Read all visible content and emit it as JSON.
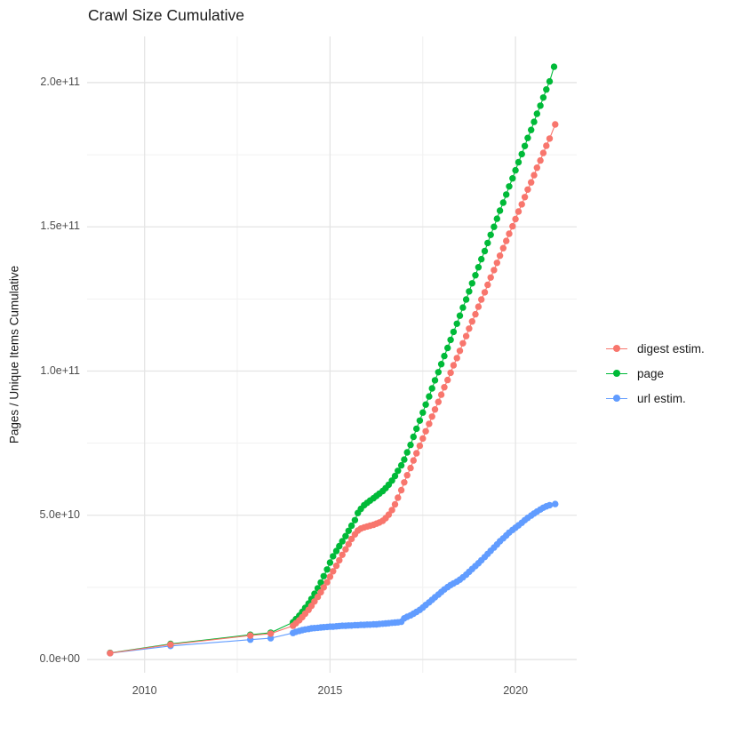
{
  "title": "Crawl Size Cumulative",
  "y_axis": {
    "title": "Pages / Unique Items Cumulative",
    "ticks": [
      "0.0e+00",
      "5.0e+10",
      "1.0e+11",
      "1.5e+11",
      "2.0e+11"
    ]
  },
  "x_axis": {
    "ticks": [
      "2010",
      "2015",
      "2020"
    ]
  },
  "legend": {
    "position": "right",
    "items": [
      {
        "label": "digest estim.",
        "color": "#F8766D"
      },
      {
        "label": "page",
        "color": "#00BA38"
      },
      {
        "label": "url estim.",
        "color": "#619CFF"
      }
    ]
  },
  "colors": {
    "background": "#FFFFFF",
    "grid_major": "#E4E4E4",
    "grid_minor": "#F1F1F1",
    "tick_text": "#4D4D4D",
    "title_text": "#1A1A1A"
  },
  "chart_data": {
    "type": "line",
    "title": "Crawl Size Cumulative",
    "xlabel": "",
    "ylabel": "Pages / Unique Items Cumulative",
    "value_unit": "billions (1e9) of pages / unique items",
    "x_domain": [
      2008.45,
      2021.65
    ],
    "y_domain_e9": [
      -4.6,
      216
    ],
    "grid": "on",
    "x_ticks": [
      {
        "value": 2010,
        "label": "2010"
      },
      {
        "value": 2015,
        "label": "2015"
      },
      {
        "value": 2020,
        "label": "2020"
      }
    ],
    "y_ticks": [
      {
        "value_e9": 0,
        "label": "0.0e+00"
      },
      {
        "value_e9": 50,
        "label": "5.0e+10"
      },
      {
        "value_e9": 100,
        "label": "1.0e+11"
      },
      {
        "value_e9": 150,
        "label": "1.5e+11"
      },
      {
        "value_e9": 200,
        "label": "2.0e+11"
      }
    ],
    "x_minor_gridlines": [
      2012.5,
      2017.5
    ],
    "y_minor_gridlines_e9": [
      25,
      75,
      125,
      175
    ],
    "render_order": [
      1,
      2,
      0
    ],
    "marker_radius_px": 3.7,
    "series": [
      {
        "name": "digest estim.",
        "color": "#F8766D",
        "points": [
          [
            2009.07,
            2.2
          ],
          [
            2010.7,
            5.2
          ],
          [
            2012.85,
            8.3
          ],
          [
            2013.4,
            9.0
          ],
          [
            2014.0,
            11.7
          ],
          [
            2014.08,
            12.6
          ],
          [
            2014.17,
            13.6
          ],
          [
            2014.25,
            14.7
          ],
          [
            2014.33,
            15.9
          ],
          [
            2014.42,
            17.2
          ],
          [
            2014.5,
            18.6
          ],
          [
            2014.58,
            20.1
          ],
          [
            2014.67,
            21.7
          ],
          [
            2014.75,
            23.3
          ],
          [
            2014.83,
            25.0
          ],
          [
            2014.92,
            26.8
          ],
          [
            2015.0,
            28.7
          ],
          [
            2015.08,
            30.6
          ],
          [
            2015.17,
            32.5
          ],
          [
            2015.25,
            34.4
          ],
          [
            2015.33,
            36.3
          ],
          [
            2015.42,
            38.2
          ],
          [
            2015.5,
            40.0
          ],
          [
            2015.58,
            41.8
          ],
          [
            2015.67,
            43.4
          ],
          [
            2015.75,
            44.7
          ],
          [
            2015.83,
            45.4
          ],
          [
            2015.92,
            45.8
          ],
          [
            2016.0,
            46.1
          ],
          [
            2016.08,
            46.4
          ],
          [
            2016.17,
            46.7
          ],
          [
            2016.25,
            47.1
          ],
          [
            2016.33,
            47.5
          ],
          [
            2016.42,
            48.1
          ],
          [
            2016.5,
            49.0
          ],
          [
            2016.58,
            50.2
          ],
          [
            2016.67,
            51.8
          ],
          [
            2016.75,
            53.8
          ],
          [
            2016.83,
            56.1
          ],
          [
            2016.92,
            58.7
          ],
          [
            2017.0,
            61.4
          ],
          [
            2017.08,
            63.9
          ],
          [
            2017.17,
            66.4
          ],
          [
            2017.25,
            69.0
          ],
          [
            2017.33,
            71.5
          ],
          [
            2017.42,
            74.1
          ],
          [
            2017.5,
            76.6
          ],
          [
            2017.58,
            79.1
          ],
          [
            2017.67,
            81.7
          ],
          [
            2017.75,
            84.2
          ],
          [
            2017.83,
            86.7
          ],
          [
            2017.92,
            89.3
          ],
          [
            2018.0,
            91.8
          ],
          [
            2018.08,
            94.4
          ],
          [
            2018.17,
            96.9
          ],
          [
            2018.25,
            99.4
          ],
          [
            2018.33,
            102.0
          ],
          [
            2018.42,
            104.5
          ],
          [
            2018.5,
            107.0
          ],
          [
            2018.58,
            109.6
          ],
          [
            2018.67,
            112.1
          ],
          [
            2018.75,
            114.7
          ],
          [
            2018.83,
            117.2
          ],
          [
            2018.92,
            119.7
          ],
          [
            2019.0,
            122.3
          ],
          [
            2019.08,
            124.8
          ],
          [
            2019.17,
            127.3
          ],
          [
            2019.25,
            129.9
          ],
          [
            2019.33,
            132.4
          ],
          [
            2019.42,
            135.0
          ],
          [
            2019.5,
            137.5
          ],
          [
            2019.58,
            140.0
          ],
          [
            2019.67,
            142.6
          ],
          [
            2019.75,
            145.1
          ],
          [
            2019.83,
            147.6
          ],
          [
            2019.92,
            150.2
          ],
          [
            2020.0,
            152.7
          ],
          [
            2020.08,
            155.3
          ],
          [
            2020.17,
            157.8
          ],
          [
            2020.25,
            160.3
          ],
          [
            2020.33,
            162.9
          ],
          [
            2020.42,
            165.4
          ],
          [
            2020.5,
            167.9
          ],
          [
            2020.58,
            170.5
          ],
          [
            2020.67,
            173.0
          ],
          [
            2020.75,
            175.6
          ],
          [
            2020.83,
            178.1
          ],
          [
            2020.92,
            180.6
          ],
          [
            2021.07,
            185.5
          ]
        ]
      },
      {
        "name": "page",
        "color": "#00BA38",
        "points": [
          [
            2009.07,
            2.3
          ],
          [
            2010.7,
            5.4
          ],
          [
            2012.85,
            8.6
          ],
          [
            2013.4,
            9.3
          ],
          [
            2014.0,
            12.9
          ],
          [
            2014.08,
            14.0
          ],
          [
            2014.17,
            15.2
          ],
          [
            2014.25,
            16.5
          ],
          [
            2014.33,
            17.9
          ],
          [
            2014.42,
            19.4
          ],
          [
            2014.5,
            21.0
          ],
          [
            2014.58,
            22.8
          ],
          [
            2014.67,
            24.7
          ],
          [
            2014.75,
            26.7
          ],
          [
            2014.83,
            28.9
          ],
          [
            2014.92,
            31.2
          ],
          [
            2015.0,
            33.6
          ],
          [
            2015.08,
            35.8
          ],
          [
            2015.17,
            37.6
          ],
          [
            2015.25,
            39.3
          ],
          [
            2015.33,
            41.0
          ],
          [
            2015.42,
            42.8
          ],
          [
            2015.5,
            44.6
          ],
          [
            2015.58,
            46.4
          ],
          [
            2015.67,
            48.3
          ],
          [
            2015.75,
            50.8
          ],
          [
            2015.83,
            52.2
          ],
          [
            2015.92,
            53.5
          ],
          [
            2016.0,
            54.3
          ],
          [
            2016.08,
            55.1
          ],
          [
            2016.17,
            55.9
          ],
          [
            2016.25,
            56.7
          ],
          [
            2016.33,
            57.5
          ],
          [
            2016.42,
            58.4
          ],
          [
            2016.5,
            59.4
          ],
          [
            2016.58,
            60.6
          ],
          [
            2016.67,
            62.0
          ],
          [
            2016.75,
            63.6
          ],
          [
            2016.83,
            65.4
          ],
          [
            2016.92,
            67.3
          ],
          [
            2017.0,
            69.3
          ],
          [
            2017.08,
            71.8
          ],
          [
            2017.17,
            74.4
          ],
          [
            2017.25,
            77.2
          ],
          [
            2017.33,
            80.0
          ],
          [
            2017.42,
            82.8
          ],
          [
            2017.5,
            85.6
          ],
          [
            2017.58,
            88.4
          ],
          [
            2017.67,
            91.2
          ],
          [
            2017.75,
            94.0
          ],
          [
            2017.83,
            96.8
          ],
          [
            2017.92,
            99.6
          ],
          [
            2018.0,
            102.4
          ],
          [
            2018.08,
            105.2
          ],
          [
            2018.17,
            108.0
          ],
          [
            2018.25,
            110.8
          ],
          [
            2018.33,
            113.6
          ],
          [
            2018.42,
            116.4
          ],
          [
            2018.5,
            119.2
          ],
          [
            2018.58,
            122.0
          ],
          [
            2018.67,
            124.8
          ],
          [
            2018.75,
            127.6
          ],
          [
            2018.83,
            130.4
          ],
          [
            2018.92,
            133.2
          ],
          [
            2019.0,
            136.0
          ],
          [
            2019.08,
            138.8
          ],
          [
            2019.17,
            141.6
          ],
          [
            2019.25,
            144.4
          ],
          [
            2019.33,
            147.2
          ],
          [
            2019.42,
            150.0
          ],
          [
            2019.5,
            152.8
          ],
          [
            2019.58,
            155.6
          ],
          [
            2019.67,
            158.4
          ],
          [
            2019.75,
            161.2
          ],
          [
            2019.83,
            164.0
          ],
          [
            2019.92,
            166.8
          ],
          [
            2020.0,
            169.6
          ],
          [
            2020.08,
            172.4
          ],
          [
            2020.17,
            175.2
          ],
          [
            2020.25,
            178.0
          ],
          [
            2020.33,
            180.8
          ],
          [
            2020.42,
            183.6
          ],
          [
            2020.5,
            186.4
          ],
          [
            2020.58,
            189.2
          ],
          [
            2020.67,
            192.0
          ],
          [
            2020.75,
            194.8
          ],
          [
            2020.83,
            197.6
          ],
          [
            2020.92,
            200.4
          ],
          [
            2021.04,
            205.5
          ]
        ]
      },
      {
        "name": "url estim.",
        "color": "#619CFF",
        "points": [
          [
            2009.07,
            2.2
          ],
          [
            2010.7,
            4.7
          ],
          [
            2012.85,
            6.9
          ],
          [
            2013.4,
            7.4
          ],
          [
            2014.0,
            9.2
          ],
          [
            2014.08,
            9.6
          ],
          [
            2014.17,
            9.9
          ],
          [
            2014.25,
            10.2
          ],
          [
            2014.33,
            10.4
          ],
          [
            2014.42,
            10.6
          ],
          [
            2014.5,
            10.8
          ],
          [
            2014.58,
            10.9
          ],
          [
            2014.67,
            11.0
          ],
          [
            2014.75,
            11.1
          ],
          [
            2014.83,
            11.2
          ],
          [
            2014.92,
            11.3
          ],
          [
            2015.0,
            11.4
          ],
          [
            2015.08,
            11.4
          ],
          [
            2015.17,
            11.5
          ],
          [
            2015.25,
            11.6
          ],
          [
            2015.33,
            11.7
          ],
          [
            2015.42,
            11.7
          ],
          [
            2015.5,
            11.8
          ],
          [
            2015.58,
            11.8
          ],
          [
            2015.67,
            11.9
          ],
          [
            2015.75,
            11.9
          ],
          [
            2015.83,
            12.0
          ],
          [
            2015.92,
            12.0
          ],
          [
            2016.0,
            12.1
          ],
          [
            2016.08,
            12.1
          ],
          [
            2016.17,
            12.2
          ],
          [
            2016.25,
            12.2
          ],
          [
            2016.33,
            12.3
          ],
          [
            2016.42,
            12.4
          ],
          [
            2016.5,
            12.5
          ],
          [
            2016.58,
            12.6
          ],
          [
            2016.67,
            12.7
          ],
          [
            2016.75,
            12.8
          ],
          [
            2016.83,
            12.9
          ],
          [
            2016.92,
            13.1
          ],
          [
            2017.0,
            14.3
          ],
          [
            2017.08,
            14.8
          ],
          [
            2017.17,
            15.3
          ],
          [
            2017.25,
            15.9
          ],
          [
            2017.33,
            16.5
          ],
          [
            2017.42,
            17.2
          ],
          [
            2017.5,
            18.0
          ],
          [
            2017.58,
            18.9
          ],
          [
            2017.67,
            19.8
          ],
          [
            2017.75,
            20.7
          ],
          [
            2017.83,
            21.6
          ],
          [
            2017.92,
            22.5
          ],
          [
            2018.0,
            23.4
          ],
          [
            2018.08,
            24.3
          ],
          [
            2018.17,
            25.1
          ],
          [
            2018.25,
            25.8
          ],
          [
            2018.33,
            26.4
          ],
          [
            2018.42,
            27.0
          ],
          [
            2018.5,
            27.7
          ],
          [
            2018.58,
            28.5
          ],
          [
            2018.67,
            29.4
          ],
          [
            2018.75,
            30.4
          ],
          [
            2018.83,
            31.4
          ],
          [
            2018.92,
            32.4
          ],
          [
            2019.0,
            33.4
          ],
          [
            2019.08,
            34.4
          ],
          [
            2019.17,
            35.5
          ],
          [
            2019.25,
            36.6
          ],
          [
            2019.33,
            37.7
          ],
          [
            2019.42,
            38.8
          ],
          [
            2019.5,
            39.9
          ],
          [
            2019.58,
            41.0
          ],
          [
            2019.67,
            42.0
          ],
          [
            2019.75,
            43.0
          ],
          [
            2019.83,
            44.0
          ],
          [
            2019.92,
            44.9
          ],
          [
            2020.0,
            45.7
          ],
          [
            2020.08,
            46.5
          ],
          [
            2020.17,
            47.4
          ],
          [
            2020.25,
            48.3
          ],
          [
            2020.33,
            49.1
          ],
          [
            2020.42,
            49.9
          ],
          [
            2020.5,
            50.6
          ],
          [
            2020.58,
            51.3
          ],
          [
            2020.67,
            52.0
          ],
          [
            2020.75,
            52.6
          ],
          [
            2020.83,
            53.1
          ],
          [
            2020.92,
            53.5
          ],
          [
            2021.07,
            53.9
          ]
        ]
      }
    ]
  }
}
